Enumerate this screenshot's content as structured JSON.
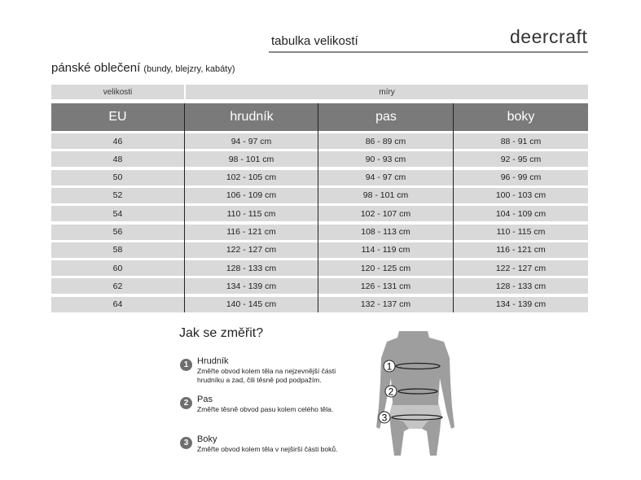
{
  "header": {
    "title": "tabulka velikostí",
    "brand": "deercraft"
  },
  "section": {
    "title": "pánské oblečení",
    "subtitle": "(bundy, blejzry, kabáty)"
  },
  "table": {
    "group_headers": [
      "velikosti",
      "míry"
    ],
    "columns": [
      "EU",
      "hrudník",
      "pas",
      "boky"
    ],
    "rows": [
      [
        "46",
        "94 - 97 cm",
        "86 - 89 cm",
        "88 - 91 cm"
      ],
      [
        "48",
        "98 - 101 cm",
        "90 - 93 cm",
        "92 - 95 cm"
      ],
      [
        "50",
        "102 - 105 cm",
        "94 - 97 cm",
        "96 - 99 cm"
      ],
      [
        "52",
        "106 - 109 cm",
        "98 - 101 cm",
        "100 - 103 cm"
      ],
      [
        "54",
        "110 - 115 cm",
        "102 - 107 cm",
        "104 - 109 cm"
      ],
      [
        "56",
        "116 - 121 cm",
        "108 - 113 cm",
        "110 - 115 cm"
      ],
      [
        "58",
        "122 - 127 cm",
        "114 - 119 cm",
        "116 - 121 cm"
      ],
      [
        "60",
        "128 - 133 cm",
        "120 - 125 cm",
        "122 - 127 cm"
      ],
      [
        "62",
        "134 - 139 cm",
        "126 - 131 cm",
        "128 - 133 cm"
      ],
      [
        "64",
        "140 - 145 cm",
        "132 - 137 cm",
        "134 - 139 cm"
      ]
    ]
  },
  "howto": {
    "title": "Jak se změřit?",
    "steps": [
      {
        "num": "1",
        "title": "Hrudník",
        "desc1": "Změřte obvod kolem těla na nejzevnější části",
        "desc2": "hrudníku a zad, čili těsně pod podpažím."
      },
      {
        "num": "2",
        "title": "Pas",
        "desc1": "Změřte těsně obvod pasu kolem celého těla.",
        "desc2": ""
      },
      {
        "num": "3",
        "title": "Boky",
        "desc1": "Změřte obvod kolem těla v nejširší části boků.",
        "desc2": ""
      }
    ],
    "figure_labels": [
      "1",
      "2",
      "3"
    ]
  }
}
